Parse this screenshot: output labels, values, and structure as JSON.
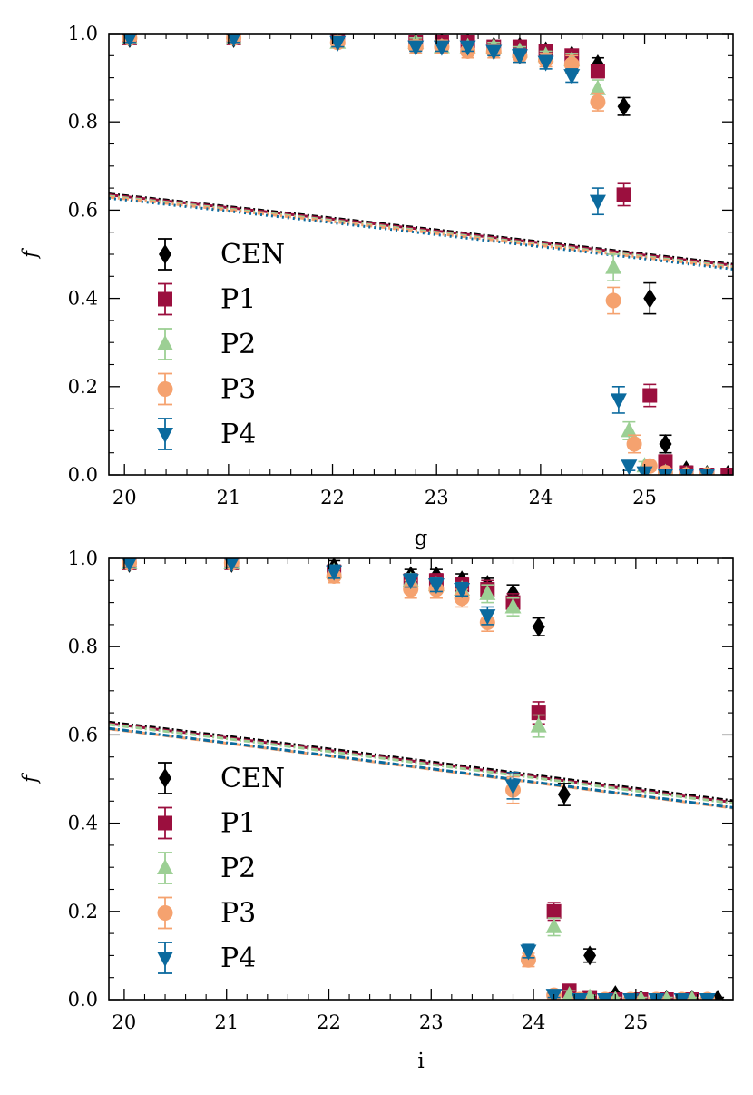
{
  "chart_data": [
    {
      "type": "scatter",
      "panel": "top",
      "xlabel": "g",
      "ylabel": "f",
      "xlim": [
        19.85,
        25.85
      ],
      "ylim": [
        0.0,
        1.0
      ],
      "xticks": [
        20,
        21,
        22,
        23,
        24,
        25
      ],
      "xtick_labels": [
        "20",
        "21",
        "22",
        "23",
        "24",
        "25"
      ],
      "yticks": [
        0.0,
        0.2,
        0.4,
        0.6,
        0.8,
        1.0
      ],
      "ytick_labels": [
        "0.0",
        "0.2",
        "0.4",
        "0.6",
        "0.8",
        "1.0"
      ],
      "legend": {
        "position": "center-left",
        "entries": [
          "CEN",
          "P1",
          "P2",
          "P3",
          "P4"
        ]
      },
      "series": [
        {
          "name": "CEN",
          "color": "#000000",
          "marker": "diamond",
          "linestyle": "dot-dash",
          "fit_m50": 25.02,
          "fit_alpha": 0.055,
          "x": [
            20.05,
            21.05,
            22.05,
            22.8,
            23.05,
            23.3,
            23.55,
            23.8,
            24.05,
            24.3,
            24.55,
            24.8,
            25.05,
            25.2,
            25.4,
            25.6,
            25.8
          ],
          "y": [
            0.99,
            0.99,
            0.99,
            0.98,
            0.98,
            0.98,
            0.97,
            0.97,
            0.96,
            0.95,
            0.93,
            0.835,
            0.4,
            0.07,
            0.01,
            0.0,
            0.0
          ],
          "err": [
            0.01,
            0.01,
            0.01,
            0.01,
            0.01,
            0.01,
            0.01,
            0.01,
            0.01,
            0.01,
            0.015,
            0.02,
            0.035,
            0.02,
            0.01,
            0.005,
            0.005
          ]
        },
        {
          "name": "P1",
          "color": "#9b0f3e",
          "marker": "square",
          "linestyle": "dashed",
          "fit_m50": 24.93,
          "fit_alpha": 0.055,
          "x": [
            20.05,
            21.05,
            22.05,
            22.8,
            23.05,
            23.3,
            23.55,
            23.8,
            24.05,
            24.3,
            24.55,
            24.8,
            25.05,
            25.2,
            25.4,
            25.6,
            25.8
          ],
          "y": [
            0.99,
            0.99,
            0.99,
            0.98,
            0.98,
            0.98,
            0.97,
            0.97,
            0.96,
            0.95,
            0.915,
            0.635,
            0.18,
            0.03,
            0.005,
            0.0,
            0.0
          ],
          "err": [
            0.01,
            0.01,
            0.01,
            0.01,
            0.01,
            0.01,
            0.01,
            0.01,
            0.01,
            0.01,
            0.015,
            0.025,
            0.025,
            0.015,
            0.005,
            0.005,
            0.005
          ]
        },
        {
          "name": "P2",
          "color": "#9ccf94",
          "marker": "triangle-up",
          "linestyle": "dot-dash",
          "fit_m50": 24.82,
          "fit_alpha": 0.055,
          "x": [
            20.05,
            21.05,
            22.05,
            22.8,
            23.05,
            23.3,
            23.55,
            23.8,
            24.05,
            24.3,
            24.55,
            24.7,
            24.85,
            25.0,
            25.2,
            25.4,
            25.6
          ],
          "y": [
            0.99,
            0.99,
            0.98,
            0.98,
            0.97,
            0.97,
            0.97,
            0.96,
            0.95,
            0.94,
            0.875,
            0.47,
            0.1,
            0.02,
            0.005,
            0.0,
            0.0
          ],
          "err": [
            0.01,
            0.01,
            0.01,
            0.01,
            0.01,
            0.01,
            0.01,
            0.01,
            0.01,
            0.015,
            0.02,
            0.03,
            0.02,
            0.01,
            0.005,
            0.005,
            0.005
          ]
        },
        {
          "name": "P3",
          "color": "#f5a26f",
          "marker": "circle",
          "linestyle": "dot-dash",
          "fit_m50": 24.72,
          "fit_alpha": 0.055,
          "x": [
            20.05,
            21.05,
            22.05,
            22.8,
            23.05,
            23.3,
            23.55,
            23.8,
            24.05,
            24.3,
            24.55,
            24.7,
            24.9,
            25.05,
            25.2,
            25.4,
            25.6
          ],
          "y": [
            0.99,
            0.99,
            0.98,
            0.97,
            0.97,
            0.96,
            0.96,
            0.95,
            0.94,
            0.93,
            0.845,
            0.395,
            0.07,
            0.02,
            0.005,
            0.0,
            0.0
          ],
          "err": [
            0.01,
            0.01,
            0.01,
            0.015,
            0.015,
            0.015,
            0.015,
            0.015,
            0.015,
            0.02,
            0.02,
            0.03,
            0.02,
            0.01,
            0.005,
            0.005,
            0.005
          ]
        },
        {
          "name": "P4",
          "color": "#0b6a9e",
          "marker": "triangle-down",
          "linestyle": "dotted",
          "fit_m50": 24.62,
          "fit_alpha": 0.055,
          "x": [
            20.05,
            21.05,
            22.05,
            22.8,
            23.05,
            23.3,
            23.55,
            23.8,
            24.05,
            24.3,
            24.55,
            24.75,
            24.85,
            25.0,
            25.2,
            25.4,
            25.6
          ],
          "y": [
            0.99,
            0.99,
            0.98,
            0.97,
            0.97,
            0.97,
            0.96,
            0.95,
            0.935,
            0.905,
            0.62,
            0.17,
            0.02,
            0.005,
            0.0,
            0.0,
            0.0
          ],
          "err": [
            0.01,
            0.01,
            0.01,
            0.01,
            0.01,
            0.01,
            0.01,
            0.015,
            0.015,
            0.015,
            0.03,
            0.03,
            0.01,
            0.005,
            0.005,
            0.005,
            0.005
          ]
        }
      ]
    },
    {
      "type": "scatter",
      "panel": "bottom",
      "xlabel": "i",
      "ylabel": "f",
      "xlim": [
        19.85,
        25.95
      ],
      "ylim": [
        0.0,
        1.0
      ],
      "xticks": [
        20,
        21,
        22,
        23,
        24,
        25
      ],
      "xtick_labels": [
        "20",
        "21",
        "22",
        "23",
        "24",
        "25"
      ],
      "yticks": [
        0.0,
        0.2,
        0.4,
        0.6,
        0.8,
        1.0
      ],
      "ytick_labels": [
        "0.0",
        "0.2",
        "0.4",
        "0.6",
        "0.8",
        "1.0"
      ],
      "legend": {
        "position": "center-left",
        "entries": [
          "CEN",
          "P1",
          "P2",
          "P3",
          "P4"
        ]
      },
      "series": [
        {
          "name": "CEN",
          "color": "#000000",
          "marker": "diamond",
          "linestyle": "dot-dash",
          "fit_m50": 24.3,
          "fit_alpha": 0.06,
          "x": [
            20.05,
            21.05,
            22.05,
            22.8,
            23.05,
            23.3,
            23.55,
            23.8,
            24.05,
            24.3,
            24.55,
            24.8,
            25.05,
            25.3,
            25.55,
            25.8
          ],
          "y": [
            0.99,
            0.99,
            0.98,
            0.96,
            0.96,
            0.95,
            0.94,
            0.92,
            0.845,
            0.465,
            0.1,
            0.01,
            0.0,
            0.0,
            0.0,
            0.0
          ],
          "err": [
            0.01,
            0.01,
            0.015,
            0.015,
            0.015,
            0.015,
            0.015,
            0.02,
            0.02,
            0.025,
            0.015,
            0.005,
            0.005,
            0.005,
            0.005,
            0.005
          ]
        },
        {
          "name": "P1",
          "color": "#9b0f3e",
          "marker": "square",
          "linestyle": "dashed",
          "fit_m50": 24.18,
          "fit_alpha": 0.06,
          "x": [
            20.05,
            21.05,
            22.05,
            22.8,
            23.05,
            23.3,
            23.55,
            23.8,
            24.05,
            24.2,
            24.35,
            24.55,
            24.8,
            25.05,
            25.3,
            25.55
          ],
          "y": [
            0.99,
            0.99,
            0.97,
            0.95,
            0.95,
            0.94,
            0.93,
            0.9,
            0.65,
            0.2,
            0.02,
            0.005,
            0.0,
            0.0,
            0.0,
            0.0
          ],
          "err": [
            0.01,
            0.01,
            0.015,
            0.015,
            0.015,
            0.015,
            0.02,
            0.02,
            0.025,
            0.02,
            0.01,
            0.005,
            0.005,
            0.005,
            0.005,
            0.005
          ]
        },
        {
          "name": "P2",
          "color": "#9ccf94",
          "marker": "triangle-up",
          "linestyle": "dot-dash",
          "fit_m50": 24.1,
          "fit_alpha": 0.06,
          "x": [
            20.05,
            21.05,
            22.05,
            22.8,
            23.05,
            23.3,
            23.55,
            23.8,
            24.05,
            24.2,
            24.35,
            24.55,
            24.8,
            25.05,
            25.3,
            25.55
          ],
          "y": [
            0.99,
            0.99,
            0.97,
            0.95,
            0.94,
            0.93,
            0.92,
            0.89,
            0.62,
            0.165,
            0.01,
            0.005,
            0.0,
            0.0,
            0.0,
            0.0
          ],
          "err": [
            0.01,
            0.01,
            0.015,
            0.015,
            0.015,
            0.015,
            0.02,
            0.02,
            0.025,
            0.02,
            0.01,
            0.005,
            0.005,
            0.005,
            0.005,
            0.005
          ]
        },
        {
          "name": "P3",
          "color": "#f5a26f",
          "marker": "circle",
          "linestyle": "dashed",
          "fit_m50": 23.74,
          "fit_alpha": 0.06,
          "x": [
            20.05,
            21.05,
            22.05,
            22.8,
            23.05,
            23.3,
            23.55,
            23.8,
            23.95,
            24.2,
            24.45,
            24.7,
            24.95,
            25.2,
            25.45,
            25.7
          ],
          "y": [
            0.99,
            0.99,
            0.96,
            0.93,
            0.93,
            0.91,
            0.855,
            0.475,
            0.09,
            0.01,
            0.0,
            0.0,
            0.0,
            0.0,
            0.0,
            0.0
          ],
          "err": [
            0.01,
            0.01,
            0.015,
            0.02,
            0.02,
            0.02,
            0.02,
            0.03,
            0.015,
            0.005,
            0.005,
            0.005,
            0.005,
            0.005,
            0.005,
            0.005
          ]
        },
        {
          "name": "P4",
          "color": "#0b6a9e",
          "marker": "triangle-down",
          "linestyle": "dot-dash",
          "fit_m50": 23.78,
          "fit_alpha": 0.06,
          "x": [
            20.05,
            21.05,
            22.05,
            22.8,
            23.05,
            23.3,
            23.55,
            23.8,
            23.95,
            24.2,
            24.45,
            24.7,
            24.95,
            25.2,
            25.45,
            25.7
          ],
          "y": [
            0.99,
            0.99,
            0.97,
            0.95,
            0.94,
            0.93,
            0.87,
            0.485,
            0.11,
            0.01,
            0.0,
            0.0,
            0.0,
            0.0,
            0.0,
            0.0
          ],
          "err": [
            0.01,
            0.01,
            0.015,
            0.015,
            0.015,
            0.015,
            0.02,
            0.03,
            0.015,
            0.005,
            0.005,
            0.005,
            0.005,
            0.005,
            0.005,
            0.005
          ]
        }
      ]
    }
  ]
}
